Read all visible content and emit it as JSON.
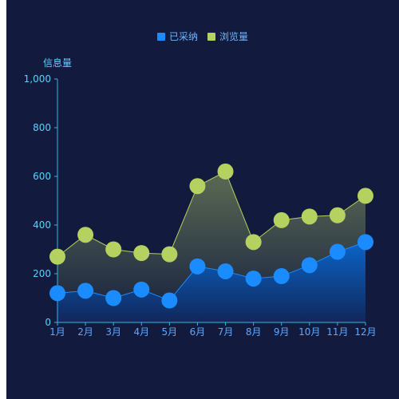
{
  "chart_data": {
    "type": "area",
    "ylabel": "信息量",
    "categories": [
      "1月",
      "2月",
      "3月",
      "4月",
      "5月",
      "6月",
      "7月",
      "8月",
      "9月",
      "10月",
      "11月",
      "12月"
    ],
    "ylim": [
      0,
      1000
    ],
    "yticks": [
      0,
      200,
      400,
      600,
      800,
      1000
    ],
    "ytick_labels": [
      "0",
      "200",
      "400",
      "600",
      "800",
      "1,000"
    ],
    "grid": false,
    "legend_position": "top-center",
    "series": [
      {
        "name": "已采纳",
        "color": "#1a8cff",
        "values": [
          120,
          130,
          100,
          135,
          90,
          230,
          210,
          180,
          190,
          235,
          290,
          330
        ]
      },
      {
        "name": "浏览量",
        "color": "#b5d160",
        "values": [
          270,
          360,
          300,
          285,
          280,
          560,
          620,
          330,
          420,
          435,
          440,
          520
        ]
      }
    ]
  }
}
